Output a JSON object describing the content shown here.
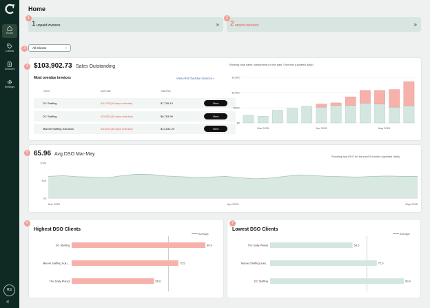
{
  "sidebar": {
    "items": [
      {
        "label": "Home",
        "icon": "home-icon"
      },
      {
        "label": "Clients",
        "icon": "tag-icon"
      },
      {
        "label": "Invoices",
        "icon": "document-icon"
      },
      {
        "label": "Settings",
        "icon": "gear-icon"
      }
    ],
    "avatar": "RS",
    "collapse": "«"
  },
  "header": {
    "title": "Home"
  },
  "banners": {
    "unpaid": {
      "badge": "1",
      "count": "1",
      "label": "unpaid invoices",
      "chevron": "»"
    },
    "unsent": {
      "badge": "2",
      "count": "2",
      "label": "unsent invoices",
      "chevron": "»"
    }
  },
  "filter": {
    "badge": "3",
    "value": "All Clients",
    "caret": "⌄"
  },
  "sales": {
    "badge": "4",
    "amount": "$103,902.73",
    "label": "Sales Outstanding",
    "overdue_title": "Most overdue invoices",
    "view_all": "View All 8 Overdue Invoices",
    "columns": [
      "Client",
      "Due Date",
      "Total Due"
    ],
    "rows": [
      {
        "client": "DC Staffing",
        "due": "4/11/25 (50 days overdue)",
        "total": "$7,795.13",
        "action": "View"
      },
      {
        "client": "DC Staffing",
        "due": "4/24/25 (36 days overdue)",
        "total": "$6,763.99",
        "action": "View"
      },
      {
        "client": "Marvell Staffing Solutions",
        "due": "4/13/25 (36 days overdue)",
        "total": "$13,182.20",
        "action": "View"
      }
    ],
    "chart_caption": "Showing total sales outstanding for the past 3 months (updated daily)"
  },
  "dso": {
    "badge": "5",
    "value": "65.96",
    "label": "Avg DSO Mar-May",
    "caption": "Showing avg DSO for the past 3 months (updated daily)"
  },
  "highest": {
    "badge": "6",
    "title": "Highest DSO Clients",
    "legend": "Average"
  },
  "lowest": {
    "badge": "7",
    "title": "Lowest DSO Clients",
    "legend": "Average"
  },
  "chart_data": [
    {
      "type": "bar",
      "stacked": true,
      "x_tick_labels": [
        "Mar 2025",
        "Apr 2025",
        "May 2025"
      ],
      "y_tick_labels": [
        "$150K",
        "$100K",
        "$50K",
        "$0"
      ],
      "ylim": [
        0,
        150
      ],
      "series": [
        {
          "color": "#d3e6df",
          "values": [
            25,
            22,
            42,
            48,
            55,
            52,
            58,
            58,
            65,
            62,
            52,
            56
          ]
        },
        {
          "color": "#f6b1ab",
          "values": [
            0,
            0,
            0,
            0,
            0,
            10,
            8,
            28,
            42,
            45,
            58,
            80
          ]
        }
      ]
    },
    {
      "type": "area",
      "x_tick_labels": [
        "Mar 2025",
        "Apr 2025",
        "May 2025"
      ],
      "y_tick_labels": [
        "100d",
        "50d",
        "0d"
      ],
      "ylim": [
        0,
        100
      ],
      "values": [
        62,
        64,
        61,
        60,
        58,
        64,
        68,
        67,
        63,
        61,
        59,
        60,
        62,
        58,
        55,
        57,
        62,
        66,
        64,
        62,
        61,
        60,
        62,
        63,
        62,
        62
      ]
    },
    {
      "type": "bar",
      "orientation": "horizontal",
      "categories": [
        "DC Staffing",
        "Marvel Staffing Solu...",
        "The Daily Planet"
      ],
      "values": [
        90.9,
        72.5,
        56.0
      ],
      "value_labels": [
        "90.9",
        "72.5",
        "56.0"
      ],
      "average": 65.96,
      "color": "#f6b1ab"
    },
    {
      "type": "bar",
      "orientation": "horizontal",
      "categories": [
        "The Daily Planet",
        "Marvel Staffing Solu...",
        "DC Staffing"
      ],
      "values": [
        56.0,
        72.5,
        90.9
      ],
      "value_labels": [
        "56.0",
        "72.5",
        "90.9"
      ],
      "average": 65.96,
      "color": "#d3e6df"
    }
  ]
}
